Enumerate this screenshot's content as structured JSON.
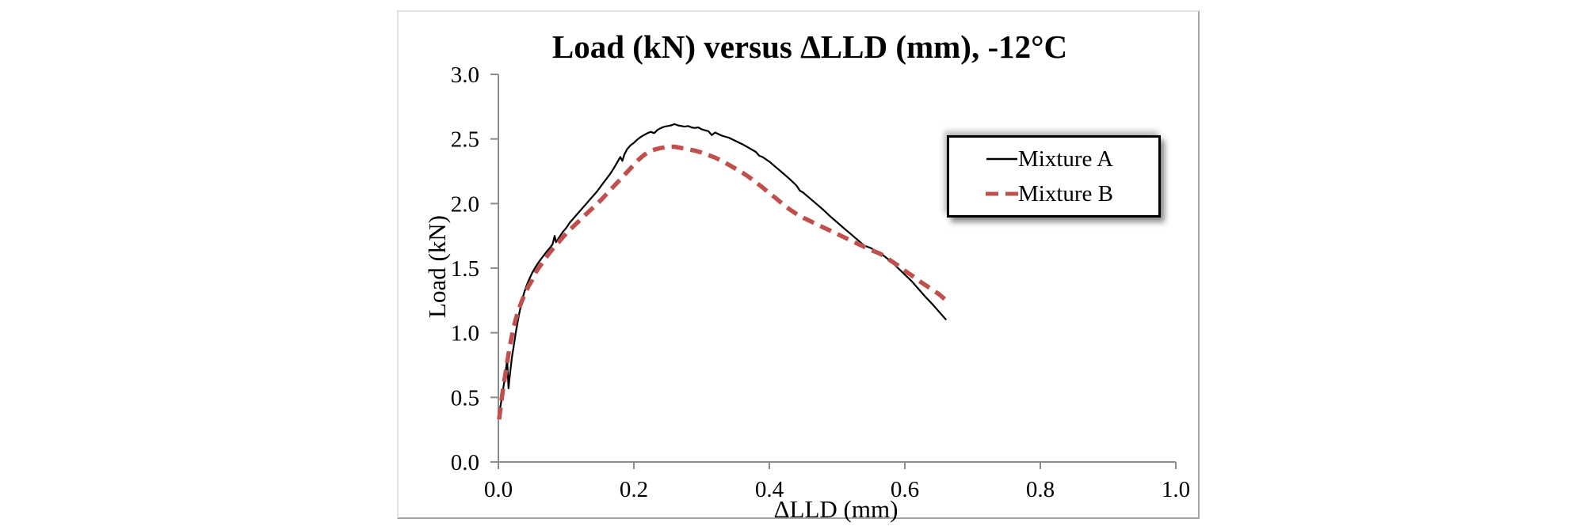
{
  "page": {
    "background_color": "#ffffff"
  },
  "chart_data": {
    "type": "line",
    "title": "Load (kN) versus ΔLLD (mm), -12°C",
    "xlabel": "ΔLLD (mm)",
    "ylabel": "Load (kN)",
    "xlim": [
      0.0,
      1.0
    ],
    "ylim": [
      0.0,
      3.0
    ],
    "x_ticks": [
      "0.0",
      "0.2",
      "0.4",
      "0.6",
      "0.8",
      "1.0"
    ],
    "y_ticks": [
      "0.0",
      "0.5",
      "1.0",
      "1.5",
      "2.0",
      "2.5",
      "3.0"
    ],
    "grid": false,
    "axis_color": "#8c8c8c",
    "legend": {
      "position": "upper-right-inside",
      "border_color": "#000000",
      "background": "#ffffff"
    },
    "series": [
      {
        "name": "Mixture A",
        "color": "#000000",
        "style": "solid",
        "stroke_width": 2.2,
        "points": [
          [
            0.002,
            0.4
          ],
          [
            0.004,
            0.46
          ],
          [
            0.006,
            0.53
          ],
          [
            0.009,
            0.63
          ],
          [
            0.011,
            0.71
          ],
          [
            0.013,
            0.79
          ],
          [
            0.014,
            0.68
          ],
          [
            0.015,
            0.57
          ],
          [
            0.016,
            0.63
          ],
          [
            0.018,
            0.72
          ],
          [
            0.02,
            0.81
          ],
          [
            0.023,
            0.91
          ],
          [
            0.026,
            1.01
          ],
          [
            0.03,
            1.13
          ],
          [
            0.034,
            1.23
          ],
          [
            0.038,
            1.31
          ],
          [
            0.042,
            1.37
          ],
          [
            0.046,
            1.42
          ],
          [
            0.05,
            1.465
          ],
          [
            0.055,
            1.51
          ],
          [
            0.06,
            1.55
          ],
          [
            0.065,
            1.585
          ],
          [
            0.07,
            1.62
          ],
          [
            0.075,
            1.65
          ],
          [
            0.08,
            1.685
          ],
          [
            0.083,
            1.75
          ],
          [
            0.085,
            1.7
          ],
          [
            0.09,
            1.74
          ],
          [
            0.095,
            1.78
          ],
          [
            0.1,
            1.81
          ],
          [
            0.105,
            1.85
          ],
          [
            0.11,
            1.88
          ],
          [
            0.115,
            1.91
          ],
          [
            0.12,
            1.94
          ],
          [
            0.125,
            1.97
          ],
          [
            0.13,
            2.0
          ],
          [
            0.135,
            2.03
          ],
          [
            0.14,
            2.06
          ],
          [
            0.145,
            2.09
          ],
          [
            0.15,
            2.125
          ],
          [
            0.155,
            2.16
          ],
          [
            0.16,
            2.195
          ],
          [
            0.165,
            2.23
          ],
          [
            0.17,
            2.27
          ],
          [
            0.175,
            2.315
          ],
          [
            0.18,
            2.36
          ],
          [
            0.183,
            2.33
          ],
          [
            0.186,
            2.38
          ],
          [
            0.19,
            2.42
          ],
          [
            0.195,
            2.45
          ],
          [
            0.2,
            2.47
          ],
          [
            0.205,
            2.495
          ],
          [
            0.21,
            2.515
          ],
          [
            0.215,
            2.53
          ],
          [
            0.22,
            2.545
          ],
          [
            0.225,
            2.555
          ],
          [
            0.23,
            2.545
          ],
          [
            0.235,
            2.57
          ],
          [
            0.24,
            2.585
          ],
          [
            0.245,
            2.595
          ],
          [
            0.25,
            2.6
          ],
          [
            0.255,
            2.605
          ],
          [
            0.26,
            2.615
          ],
          [
            0.265,
            2.605
          ],
          [
            0.27,
            2.6
          ],
          [
            0.275,
            2.595
          ],
          [
            0.28,
            2.6
          ],
          [
            0.285,
            2.59
          ],
          [
            0.29,
            2.585
          ],
          [
            0.295,
            2.59
          ],
          [
            0.3,
            2.575
          ],
          [
            0.31,
            2.56
          ],
          [
            0.315,
            2.53
          ],
          [
            0.32,
            2.55
          ],
          [
            0.33,
            2.525
          ],
          [
            0.34,
            2.51
          ],
          [
            0.35,
            2.485
          ],
          [
            0.36,
            2.46
          ],
          [
            0.37,
            2.43
          ],
          [
            0.38,
            2.4
          ],
          [
            0.385,
            2.37
          ],
          [
            0.39,
            2.36
          ],
          [
            0.4,
            2.325
          ],
          [
            0.41,
            2.28
          ],
          [
            0.42,
            2.235
          ],
          [
            0.43,
            2.19
          ],
          [
            0.44,
            2.14
          ],
          [
            0.445,
            2.1
          ],
          [
            0.45,
            2.085
          ],
          [
            0.46,
            2.04
          ],
          [
            0.47,
            1.995
          ],
          [
            0.48,
            1.95
          ],
          [
            0.49,
            1.9
          ],
          [
            0.5,
            1.855
          ],
          [
            0.51,
            1.81
          ],
          [
            0.52,
            1.765
          ],
          [
            0.53,
            1.72
          ],
          [
            0.54,
            1.675
          ],
          [
            0.55,
            1.655
          ],
          [
            0.56,
            1.625
          ],
          [
            0.568,
            1.6
          ],
          [
            0.58,
            1.55
          ],
          [
            0.59,
            1.5
          ],
          [
            0.6,
            1.45
          ],
          [
            0.61,
            1.4
          ],
          [
            0.62,
            1.34
          ],
          [
            0.63,
            1.28
          ],
          [
            0.64,
            1.225
          ],
          [
            0.65,
            1.165
          ],
          [
            0.661,
            1.1
          ]
        ]
      },
      {
        "name": "Mixture B",
        "color": "#C0504D",
        "style": "dashed",
        "stroke_width": 5.5,
        "points": [
          [
            0.001,
            0.33
          ],
          [
            0.004,
            0.45
          ],
          [
            0.007,
            0.57
          ],
          [
            0.01,
            0.67
          ],
          [
            0.013,
            0.77
          ],
          [
            0.016,
            0.87
          ],
          [
            0.019,
            0.95
          ],
          [
            0.022,
            1.03
          ],
          [
            0.026,
            1.11
          ],
          [
            0.03,
            1.18
          ],
          [
            0.035,
            1.25
          ],
          [
            0.04,
            1.31
          ],
          [
            0.045,
            1.365
          ],
          [
            0.05,
            1.41
          ],
          [
            0.056,
            1.475
          ],
          [
            0.062,
            1.52
          ],
          [
            0.068,
            1.565
          ],
          [
            0.075,
            1.615
          ],
          [
            0.082,
            1.66
          ],
          [
            0.089,
            1.7
          ],
          [
            0.096,
            1.745
          ],
          [
            0.104,
            1.79
          ],
          [
            0.112,
            1.83
          ],
          [
            0.12,
            1.87
          ],
          [
            0.128,
            1.91
          ],
          [
            0.136,
            1.95
          ],
          [
            0.144,
            1.99
          ],
          [
            0.152,
            2.03
          ],
          [
            0.16,
            2.075
          ],
          [
            0.168,
            2.12
          ],
          [
            0.176,
            2.165
          ],
          [
            0.184,
            2.21
          ],
          [
            0.192,
            2.255
          ],
          [
            0.2,
            2.3
          ],
          [
            0.208,
            2.345
          ],
          [
            0.216,
            2.38
          ],
          [
            0.224,
            2.405
          ],
          [
            0.232,
            2.42
          ],
          [
            0.24,
            2.43
          ],
          [
            0.25,
            2.44
          ],
          [
            0.26,
            2.44
          ],
          [
            0.27,
            2.43
          ],
          [
            0.28,
            2.42
          ],
          [
            0.29,
            2.41
          ],
          [
            0.3,
            2.395
          ],
          [
            0.31,
            2.375
          ],
          [
            0.32,
            2.355
          ],
          [
            0.33,
            2.33
          ],
          [
            0.34,
            2.3
          ],
          [
            0.35,
            2.27
          ],
          [
            0.36,
            2.24
          ],
          [
            0.37,
            2.205
          ],
          [
            0.38,
            2.165
          ],
          [
            0.39,
            2.125
          ],
          [
            0.4,
            2.08
          ],
          [
            0.41,
            2.04
          ],
          [
            0.42,
            1.995
          ],
          [
            0.43,
            1.955
          ],
          [
            0.44,
            1.92
          ],
          [
            0.45,
            1.89
          ],
          [
            0.46,
            1.865
          ],
          [
            0.47,
            1.84
          ],
          [
            0.48,
            1.815
          ],
          [
            0.49,
            1.79
          ],
          [
            0.5,
            1.765
          ],
          [
            0.51,
            1.74
          ],
          [
            0.52,
            1.715
          ],
          [
            0.53,
            1.69
          ],
          [
            0.54,
            1.665
          ],
          [
            0.55,
            1.64
          ],
          [
            0.56,
            1.62
          ],
          [
            0.568,
            1.6
          ],
          [
            0.58,
            1.555
          ],
          [
            0.59,
            1.52
          ],
          [
            0.6,
            1.48
          ],
          [
            0.61,
            1.445
          ],
          [
            0.62,
            1.405
          ],
          [
            0.63,
            1.37
          ],
          [
            0.64,
            1.335
          ],
          [
            0.65,
            1.3
          ],
          [
            0.659,
            1.26
          ]
        ]
      }
    ]
  }
}
